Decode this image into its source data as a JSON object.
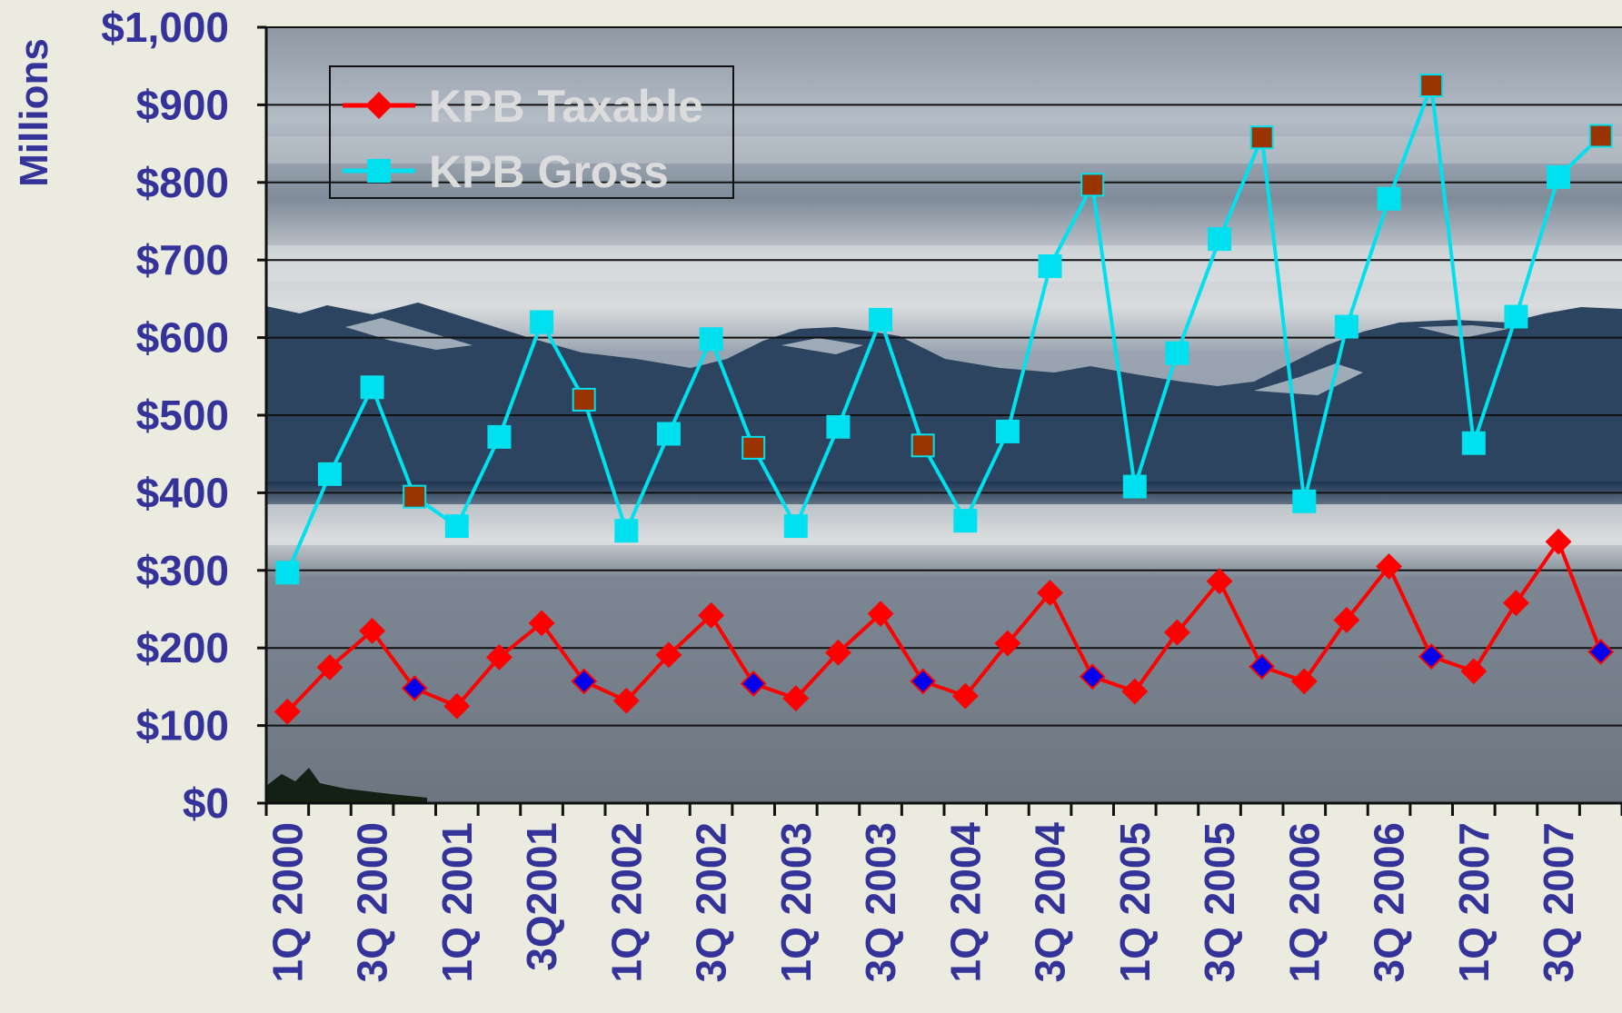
{
  "chart_data": {
    "type": "line",
    "ylabel": "Millions",
    "ylim": [
      0,
      1000
    ],
    "y_ticks": [
      0,
      100,
      200,
      300,
      400,
      500,
      600,
      700,
      800,
      900,
      1000
    ],
    "y_tick_labels": [
      "$0",
      "$100",
      "$200",
      "$300",
      "$400",
      "$500",
      "$600",
      "$700",
      "$800",
      "$900",
      "$1,000"
    ],
    "x_tick_labels": [
      "1Q 2000",
      "3Q 2000",
      "1Q 2001",
      "3Q2001",
      "1Q 2002",
      "3Q 2002",
      "1Q 2003",
      "3Q 2003",
      "1Q 2004",
      "3Q 2004",
      "1Q 2005",
      "3Q 2005",
      "1Q 2006",
      "3Q 2006",
      "1Q 2007",
      "3Q 2007"
    ],
    "grid": true,
    "legend_position": "top-left",
    "background": "photo of mountains, clouds and sea",
    "series": [
      {
        "name": "KPB Taxable",
        "color": "#ff0000",
        "marker": "diamond",
        "highlight_color": "#0000ee",
        "highlight_quarter": "4Q",
        "values": [
          118,
          175,
          222,
          148,
          125,
          188,
          232,
          157,
          132,
          191,
          242,
          154,
          135,
          194,
          244,
          157,
          138,
          206,
          271,
          163,
          144,
          220,
          286,
          176,
          157,
          236,
          305,
          189,
          170,
          258,
          337,
          195
        ]
      },
      {
        "name": "KPB Gross",
        "color": "#00e0ee",
        "marker": "square",
        "highlight_color": "#993300",
        "highlight_quarter": "4Q",
        "values": [
          297,
          424,
          536,
          395,
          357,
          472,
          620,
          520,
          351,
          476,
          598,
          458,
          357,
          485,
          623,
          461,
          364,
          479,
          692,
          797,
          408,
          580,
          727,
          858,
          389,
          614,
          779,
          925,
          464,
          627,
          807,
          860
        ]
      }
    ]
  }
}
